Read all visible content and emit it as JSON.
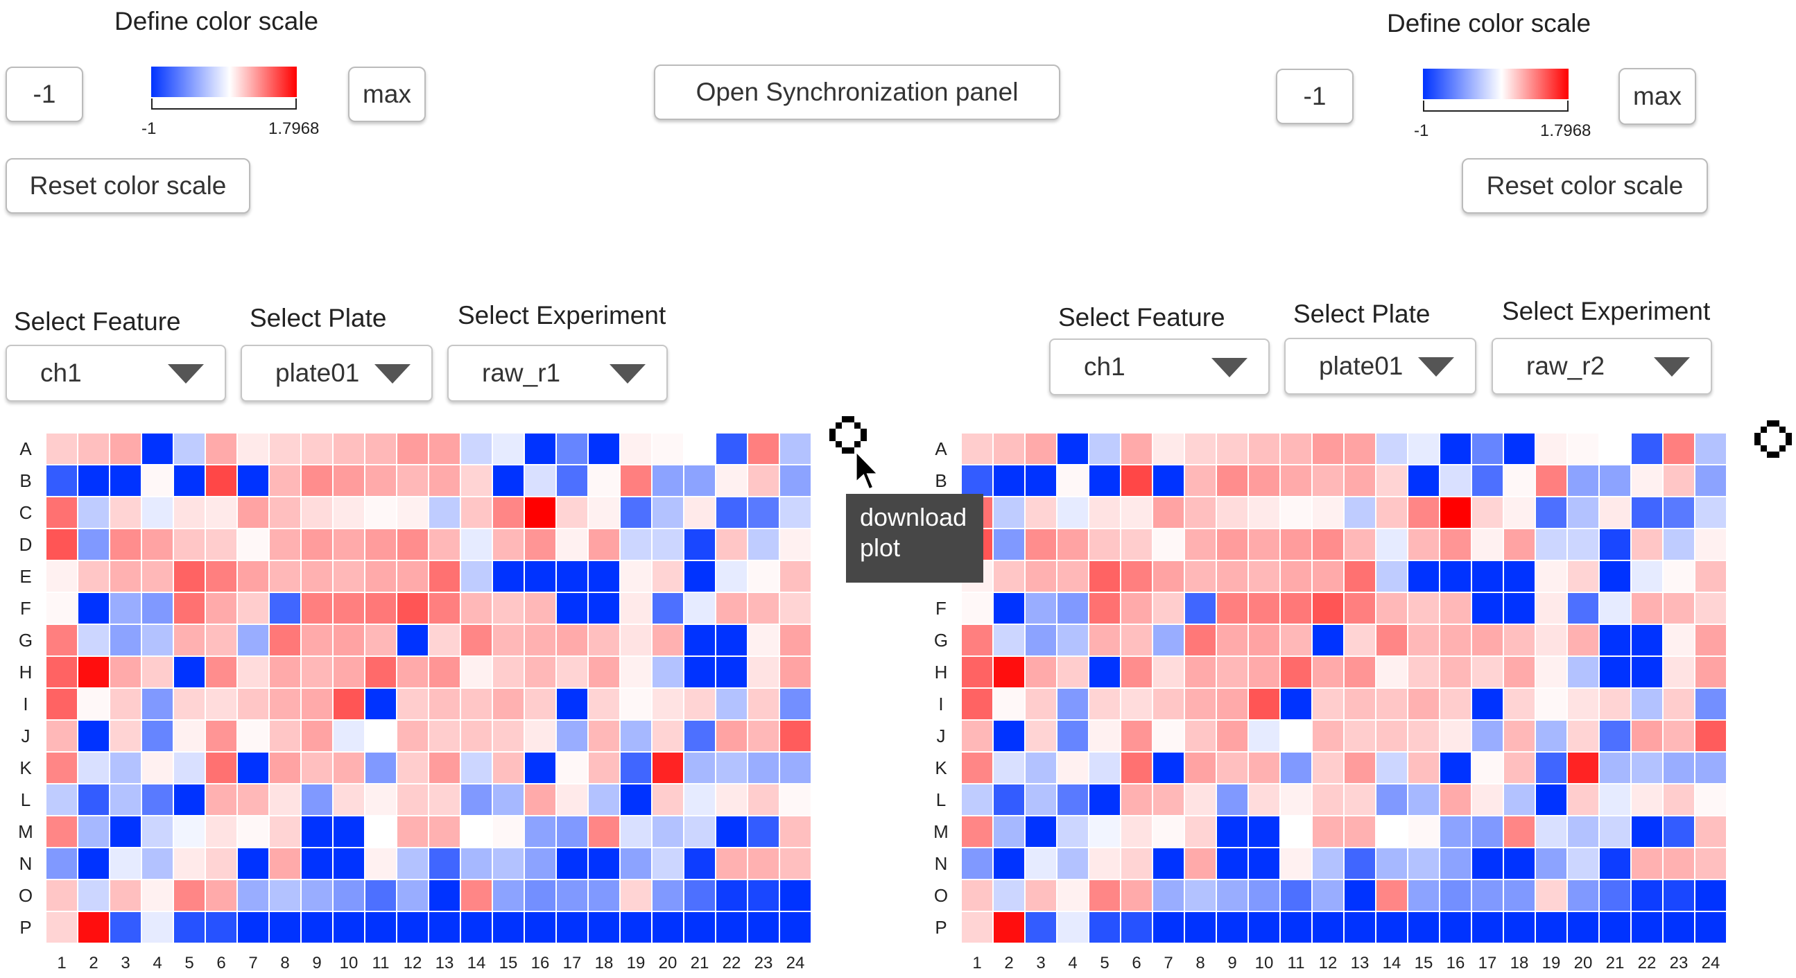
{
  "color_scale": {
    "min_color": "#0033ff",
    "mid_color": "#ffffff",
    "max_color": "#ff0000",
    "min": -1,
    "max": 1.7968
  },
  "left_panel": {
    "scale_title": "Define color scale",
    "min_input": "-1",
    "max_button": "max",
    "bar_min_label": "-1",
    "bar_max_label": "1.7968",
    "reset_button": "Reset color scale",
    "feature_label": "Select Feature",
    "feature_value": "ch1",
    "plate_label": "Select Plate",
    "plate_value": "plate01",
    "experiment_label": "Select Experiment",
    "experiment_value": "raw_r1"
  },
  "right_panel": {
    "scale_title": "Define color scale",
    "min_input": "-1",
    "max_button": "max",
    "bar_min_label": "-1",
    "bar_max_label": "1.7968",
    "reset_button": "Reset color scale",
    "feature_label": "Select Feature",
    "feature_value": "ch1",
    "plate_label": "Select Plate",
    "plate_value": "plate01",
    "experiment_label": "Select Experiment",
    "experiment_value": "raw_r2"
  },
  "sync_button": "Open Synchronization panel",
  "download_icon": "download-icon",
  "tooltip": {
    "line1": "download",
    "line2": "plot"
  },
  "chart_data": [
    {
      "type": "heatmap",
      "rows": [
        "A",
        "B",
        "C",
        "D",
        "E",
        "F",
        "G",
        "H",
        "I",
        "J",
        "K",
        "L",
        "M",
        "N",
        "O",
        "P"
      ],
      "columns": [
        "1",
        "2",
        "3",
        "4",
        "5",
        "6",
        "7",
        "8",
        "9",
        "10",
        "11",
        "12",
        "13",
        "14",
        "15",
        "16",
        "17",
        "18",
        "19",
        "20",
        "21",
        "22",
        "23",
        "24"
      ],
      "values": [
        [
          0.35,
          0.45,
          0.6,
          -1,
          -0.25,
          0.6,
          0.15,
          0.3,
          0.35,
          0.45,
          0.5,
          0.7,
          0.65,
          -0.2,
          -0.1,
          -1,
          -0.6,
          -1,
          0.1,
          0.05,
          0.0,
          -0.8,
          0.9,
          -0.3
        ],
        [
          -0.8,
          -1,
          -1,
          0.05,
          -1,
          1.3,
          -1,
          0.5,
          0.8,
          0.7,
          0.6,
          0.5,
          0.6,
          0.3,
          -1,
          -0.15,
          -0.7,
          0.05,
          0.9,
          -0.45,
          -0.45,
          0.1,
          0.4,
          -0.45
        ],
        [
          1.0,
          -0.25,
          0.3,
          -0.1,
          0.2,
          0.15,
          0.65,
          0.45,
          0.25,
          0.15,
          0.05,
          0.1,
          -0.25,
          0.4,
          0.85,
          1.7968,
          0.3,
          0.1,
          -0.7,
          -0.3,
          0.15,
          -0.75,
          -0.65,
          -0.2
        ],
        [
          1.2,
          -0.5,
          0.8,
          0.65,
          0.4,
          0.35,
          0.05,
          0.55,
          0.7,
          0.6,
          0.7,
          0.8,
          0.5,
          -0.1,
          0.5,
          0.75,
          0.1,
          0.65,
          -0.2,
          -0.2,
          -0.9,
          0.4,
          -0.25,
          0.1
        ],
        [
          0.1,
          0.4,
          0.55,
          0.5,
          1.1,
          0.9,
          0.65,
          0.5,
          0.55,
          0.5,
          0.6,
          0.6,
          1.0,
          -0.25,
          -1,
          -1,
          -1,
          -1,
          0.1,
          0.3,
          -1,
          -0.1,
          0.05,
          0.45
        ],
        [
          0.05,
          -1,
          -0.4,
          -0.5,
          1.0,
          0.6,
          0.35,
          -0.75,
          0.9,
          0.9,
          0.95,
          1.2,
          0.9,
          0.5,
          0.4,
          0.5,
          -1,
          -1,
          0.15,
          -0.7,
          -0.1,
          0.55,
          0.5,
          0.3
        ],
        [
          0.9,
          -0.2,
          -0.45,
          -0.3,
          0.55,
          0.45,
          -0.4,
          0.95,
          0.6,
          0.65,
          0.5,
          -1,
          0.3,
          0.85,
          0.5,
          0.55,
          0.6,
          0.45,
          0.2,
          0.55,
          -1,
          -1,
          0.1,
          0.65
        ],
        [
          1.1,
          1.7,
          0.6,
          0.35,
          -1,
          0.8,
          0.25,
          0.6,
          0.5,
          0.6,
          1.05,
          0.6,
          0.75,
          0.1,
          0.35,
          0.5,
          0.3,
          0.6,
          0.1,
          -0.3,
          -1,
          -1,
          0.2,
          0.65
        ],
        [
          1.1,
          0.05,
          0.35,
          -0.5,
          0.3,
          0.25,
          0.4,
          0.55,
          0.6,
          1.2,
          -1,
          0.35,
          0.45,
          0.4,
          0.55,
          0.35,
          -1,
          0.3,
          0.05,
          0.2,
          0.3,
          -0.3,
          0.35,
          -0.55
        ],
        [
          0.5,
          -1,
          0.3,
          -0.6,
          0.1,
          0.75,
          0.05,
          0.4,
          0.65,
          -0.1,
          0.0,
          0.5,
          0.35,
          0.4,
          0.35,
          0.15,
          -0.4,
          0.5,
          -0.35,
          0.3,
          -0.7,
          0.65,
          0.5,
          1.15
        ],
        [
          0.85,
          -0.15,
          -0.3,
          0.1,
          -0.15,
          1.0,
          -1,
          0.65,
          0.45,
          0.55,
          -0.5,
          0.35,
          0.7,
          -0.2,
          0.45,
          -1,
          0.05,
          0.45,
          -0.75,
          1.55,
          -0.35,
          -0.3,
          -0.4,
          -0.4
        ],
        [
          -0.25,
          -0.8,
          -0.3,
          -0.65,
          -1,
          0.55,
          0.5,
          0.2,
          -0.5,
          0.25,
          0.1,
          0.35,
          0.3,
          -0.5,
          -0.35,
          0.6,
          0.15,
          -0.3,
          -1,
          0.35,
          -0.1,
          0.15,
          0.35,
          0.05
        ],
        [
          0.85,
          -0.35,
          -1,
          -0.2,
          -0.05,
          0.2,
          0.05,
          0.3,
          -1,
          -1,
          0.0,
          0.55,
          0.55,
          0.0,
          0.05,
          -0.45,
          -0.5,
          0.85,
          -0.15,
          -0.3,
          -0.2,
          -1,
          -0.8,
          0.45
        ],
        [
          -0.5,
          -1,
          -0.1,
          -0.3,
          0.15,
          0.3,
          -1,
          0.6,
          -1,
          -1,
          0.1,
          -0.3,
          -0.75,
          -0.35,
          -0.3,
          -0.45,
          -1,
          -1,
          -0.45,
          -0.2,
          -0.95,
          0.55,
          0.55,
          0.45
        ],
        [
          0.4,
          -0.2,
          0.45,
          0.1,
          0.85,
          0.6,
          -0.4,
          -0.3,
          -0.4,
          -0.5,
          -0.7,
          -0.4,
          -1,
          0.85,
          -0.45,
          -0.55,
          -0.5,
          -0.5,
          0.3,
          -0.5,
          -0.7,
          -0.95,
          -0.9,
          -1
        ],
        [
          0.3,
          1.7,
          -0.8,
          -0.1,
          -0.85,
          -0.85,
          -1,
          -1,
          -1,
          -1,
          -1,
          -1,
          -1,
          -1,
          -1,
          -1,
          -1,
          -1,
          -1,
          -1,
          -1,
          -1,
          -1,
          -1
        ]
      ]
    },
    {
      "type": "heatmap",
      "rows": [
        "A",
        "B",
        "C",
        "D",
        "E",
        "F",
        "G",
        "H",
        "I",
        "J",
        "K",
        "L",
        "M",
        "N",
        "O",
        "P"
      ],
      "columns": [
        "1",
        "2",
        "3",
        "4",
        "5",
        "6",
        "7",
        "8",
        "9",
        "10",
        "11",
        "12",
        "13",
        "14",
        "15",
        "16",
        "17",
        "18",
        "19",
        "20",
        "21",
        "22",
        "23",
        "24"
      ],
      "values": [
        [
          0.35,
          0.45,
          0.6,
          -1,
          -0.25,
          0.6,
          0.15,
          0.3,
          0.35,
          0.45,
          0.5,
          0.7,
          0.65,
          -0.2,
          -0.1,
          -1,
          -0.6,
          -1,
          0.1,
          0.05,
          0.0,
          -0.8,
          0.9,
          -0.3
        ],
        [
          -0.8,
          -1,
          -1,
          0.05,
          -1,
          1.3,
          -1,
          0.5,
          0.8,
          0.7,
          0.6,
          0.5,
          0.6,
          0.3,
          -1,
          -0.15,
          -0.7,
          0.05,
          0.9,
          -0.45,
          -0.45,
          0.1,
          0.4,
          -0.45
        ],
        [
          1.0,
          -0.25,
          0.3,
          -0.1,
          0.2,
          0.15,
          0.65,
          0.45,
          0.25,
          0.15,
          0.05,
          0.1,
          -0.25,
          0.4,
          0.85,
          1.7968,
          0.3,
          0.1,
          -0.7,
          -0.3,
          0.15,
          -0.75,
          -0.65,
          -0.2
        ],
        [
          1.2,
          -0.5,
          0.8,
          0.65,
          0.4,
          0.35,
          0.05,
          0.55,
          0.7,
          0.6,
          0.7,
          0.8,
          0.5,
          -0.1,
          0.5,
          0.75,
          0.1,
          0.65,
          -0.2,
          -0.2,
          -0.9,
          0.4,
          -0.25,
          0.1
        ],
        [
          0.1,
          0.4,
          0.55,
          0.5,
          1.1,
          0.9,
          0.65,
          0.5,
          0.55,
          0.5,
          0.6,
          0.6,
          1.0,
          -0.25,
          -1,
          -1,
          -1,
          -1,
          0.1,
          0.3,
          -1,
          -0.1,
          0.05,
          0.45
        ],
        [
          0.05,
          -1,
          -0.4,
          -0.5,
          1.0,
          0.6,
          0.35,
          -0.75,
          0.9,
          0.9,
          0.95,
          1.2,
          0.9,
          0.5,
          0.4,
          0.5,
          -1,
          -1,
          0.15,
          -0.7,
          -0.1,
          0.55,
          0.5,
          0.3
        ],
        [
          0.9,
          -0.2,
          -0.45,
          -0.3,
          0.55,
          0.45,
          -0.4,
          0.95,
          0.6,
          0.65,
          0.5,
          -1,
          0.3,
          0.85,
          0.5,
          0.55,
          0.6,
          0.45,
          0.2,
          0.55,
          -1,
          -1,
          0.1,
          0.65
        ],
        [
          1.1,
          1.7,
          0.6,
          0.35,
          -1,
          0.8,
          0.25,
          0.6,
          0.5,
          0.6,
          1.05,
          0.6,
          0.75,
          0.1,
          0.35,
          0.5,
          0.3,
          0.6,
          0.1,
          -0.3,
          -1,
          -1,
          0.2,
          0.65
        ],
        [
          1.1,
          0.05,
          0.35,
          -0.5,
          0.3,
          0.25,
          0.4,
          0.55,
          0.6,
          1.2,
          -1,
          0.35,
          0.45,
          0.4,
          0.55,
          0.35,
          -1,
          0.3,
          0.05,
          0.2,
          0.3,
          -0.3,
          0.35,
          -0.55
        ],
        [
          0.5,
          -1,
          0.3,
          -0.6,
          0.1,
          0.75,
          0.05,
          0.4,
          0.65,
          -0.1,
          0.0,
          0.5,
          0.35,
          0.4,
          0.35,
          0.15,
          -0.4,
          0.5,
          -0.35,
          0.3,
          -0.7,
          0.65,
          0.5,
          1.15
        ],
        [
          0.85,
          -0.15,
          -0.3,
          0.1,
          -0.15,
          1.0,
          -1,
          0.65,
          0.45,
          0.55,
          -0.5,
          0.35,
          0.7,
          -0.2,
          0.45,
          -1,
          0.05,
          0.45,
          -0.75,
          1.55,
          -0.35,
          -0.3,
          -0.4,
          -0.4
        ],
        [
          -0.25,
          -0.8,
          -0.3,
          -0.65,
          -1,
          0.55,
          0.5,
          0.2,
          -0.5,
          0.25,
          0.1,
          0.35,
          0.3,
          -0.5,
          -0.35,
          0.6,
          0.15,
          -0.3,
          -1,
          0.35,
          -0.1,
          0.15,
          0.35,
          0.05
        ],
        [
          0.85,
          -0.35,
          -1,
          -0.2,
          -0.05,
          0.2,
          0.05,
          0.3,
          -1,
          -1,
          0.0,
          0.55,
          0.55,
          0.0,
          0.05,
          -0.45,
          -0.5,
          0.85,
          -0.15,
          -0.3,
          -0.2,
          -1,
          -0.8,
          0.45
        ],
        [
          -0.5,
          -1,
          -0.1,
          -0.3,
          0.15,
          0.3,
          -1,
          0.6,
          -1,
          -1,
          0.1,
          -0.3,
          -0.75,
          -0.35,
          -0.3,
          -0.45,
          -1,
          -1,
          -0.45,
          -0.2,
          -0.95,
          0.55,
          0.55,
          0.45
        ],
        [
          0.4,
          -0.2,
          0.45,
          0.1,
          0.85,
          0.6,
          -0.4,
          -0.3,
          -0.4,
          -0.5,
          -0.7,
          -0.4,
          -1,
          0.85,
          -0.45,
          -0.55,
          -0.5,
          -0.5,
          0.3,
          -0.5,
          -0.7,
          -0.95,
          -0.9,
          -1
        ],
        [
          0.3,
          1.7,
          -0.8,
          -0.1,
          -0.85,
          -0.85,
          -1,
          -1,
          -1,
          -1,
          -1,
          -1,
          -1,
          -1,
          -1,
          -1,
          -1,
          -1,
          -1,
          -1,
          -1,
          -1,
          -1,
          -1
        ]
      ]
    }
  ]
}
